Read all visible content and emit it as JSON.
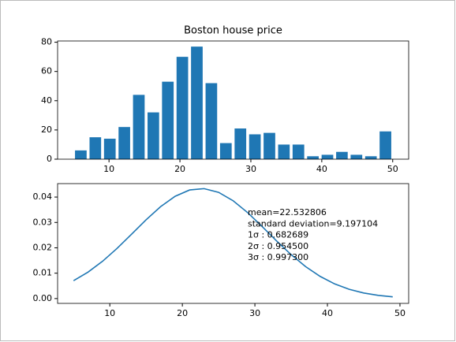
{
  "chart_data": [
    {
      "type": "histogram",
      "title": "Boston house price",
      "color": "#1f77b4",
      "bins": [
        5,
        7.05,
        9.09,
        11.14,
        13.18,
        15.23,
        17.27,
        19.32,
        21.36,
        23.41,
        25.45,
        27.5,
        29.55,
        31.59,
        33.64,
        35.68,
        37.73,
        39.77,
        41.82,
        43.86,
        45.91,
        47.95,
        50
      ],
      "values": [
        6,
        15,
        14,
        22,
        44,
        32,
        53,
        70,
        77,
        52,
        11,
        21,
        17,
        18,
        10,
        10,
        2,
        3,
        5,
        3,
        2,
        19
      ],
      "xlim": [
        2.75,
        52.25
      ],
      "xticks": [
        10,
        20,
        30,
        40,
        50
      ],
      "ylim": [
        0,
        80.85
      ],
      "yticks": [
        0,
        20,
        40,
        60,
        80
      ]
    },
    {
      "type": "line",
      "color": "#1f77b4",
      "x": [
        5,
        7,
        9,
        11,
        13,
        15,
        17,
        19,
        21,
        23,
        25,
        27,
        29,
        31,
        33,
        35,
        37,
        39,
        41,
        43,
        45,
        47,
        49
      ],
      "values": [
        0.00706,
        0.01042,
        0.0147,
        0.01977,
        0.02536,
        0.03103,
        0.03621,
        0.0403,
        0.04279,
        0.04332,
        0.04185,
        0.03855,
        0.03387,
        0.02839,
        0.02269,
        0.0173,
        0.01258,
        0.00873,
        0.00577,
        0.00364,
        0.00219,
        0.00126,
        0.00069
      ],
      "xlim": [
        2.8,
        51.2
      ],
      "xticks": [
        10,
        20,
        30,
        40,
        50
      ],
      "ylim": [
        -0.0019,
        0.0453
      ],
      "yticks": [
        {
          "value": 0,
          "label": "0.00"
        },
        {
          "value": 0.01,
          "label": "0.01"
        },
        {
          "value": 0.02,
          "label": "0.02"
        },
        {
          "value": 0.03,
          "label": "0.03"
        },
        {
          "value": 0.04,
          "label": "0.04"
        }
      ],
      "annotation": [
        "mean=22.532806",
        "standard deviation=9.197104",
        "1σ : 0.682689",
        "2σ : 0.954500",
        "3σ : 0.997300"
      ]
    }
  ]
}
